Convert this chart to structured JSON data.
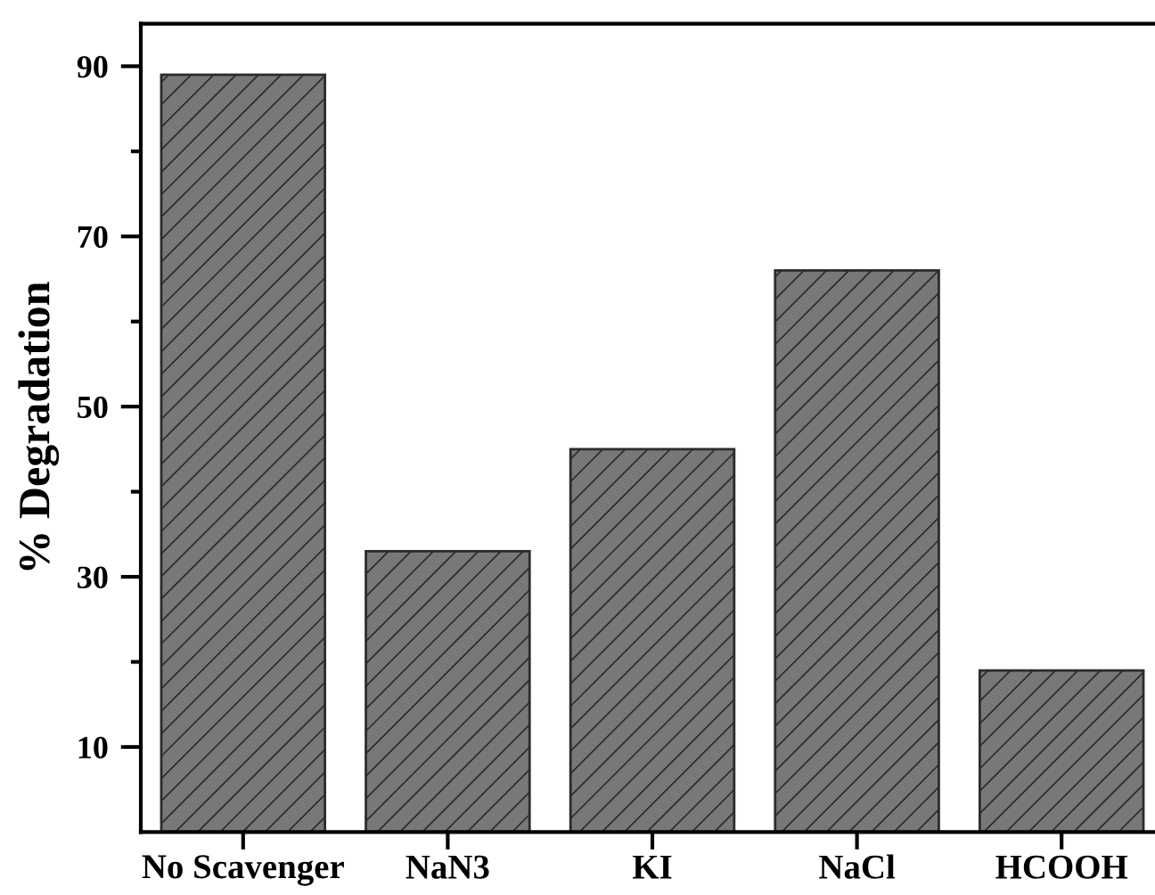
{
  "chart_data": {
    "type": "bar",
    "ylabel": "% Degradation",
    "categories": [
      "No Scavenger",
      "NaN3",
      "KI",
      "NaCl",
      "HCOOH"
    ],
    "values": [
      89,
      33,
      45,
      66,
      19
    ],
    "color": "#787878",
    "ylim": [
      0,
      95
    ],
    "yticks": [
      10,
      {
        "value": 20,
        "label": null
      },
      30,
      {
        "value": 40,
        "label": null
      },
      50,
      {
        "value": 60,
        "label": null
      },
      70,
      {
        "value": 80,
        "label": null
      },
      90
    ]
  }
}
